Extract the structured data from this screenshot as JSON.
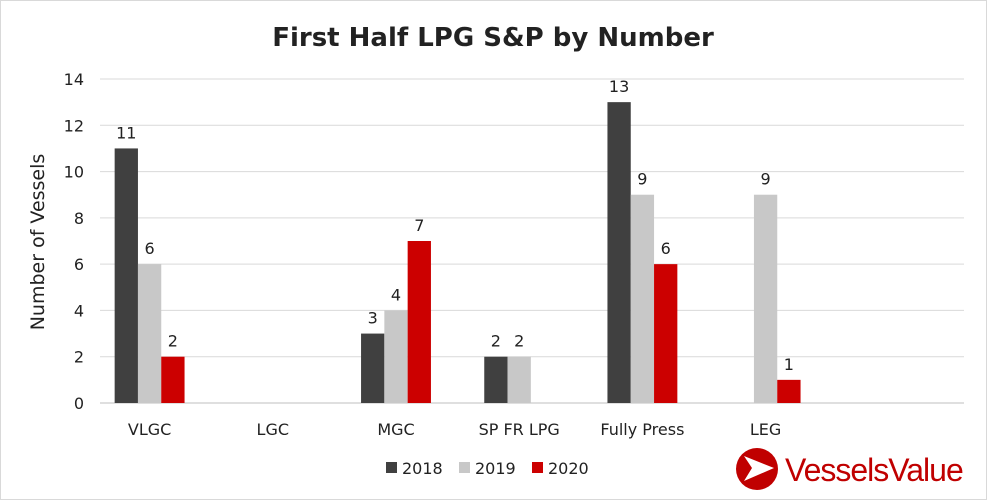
{
  "chart_data": {
    "type": "bar",
    "title": "First Half LPG S&P by Number",
    "xlabel": "",
    "ylabel": "Number of Vessels",
    "categories": [
      "VLGC",
      "LGC",
      "MGC",
      "SP FR LPG",
      "Fully Press",
      "LEG"
    ],
    "series": [
      {
        "name": "2018",
        "color": "#404040",
        "values": [
          11,
          0,
          3,
          2,
          13,
          0
        ]
      },
      {
        "name": "2019",
        "color": "#c8c8c8",
        "values": [
          6,
          0,
          4,
          2,
          9,
          9
        ]
      },
      {
        "name": "2020",
        "color": "#cc0000",
        "values": [
          2,
          0,
          7,
          0,
          6,
          1
        ]
      }
    ],
    "data_labels": [
      [
        11,
        null,
        3,
        2,
        13,
        null
      ],
      [
        6,
        null,
        4,
        2,
        9,
        9
      ],
      [
        2,
        null,
        7,
        null,
        6,
        1
      ]
    ],
    "ylim": [
      0,
      14
    ],
    "yticks": [
      0,
      2,
      4,
      6,
      8,
      10,
      12,
      14
    ],
    "grid": true,
    "legend_position": "bottom"
  },
  "logo": {
    "text": "VesselsValue",
    "color": "#c00000"
  }
}
